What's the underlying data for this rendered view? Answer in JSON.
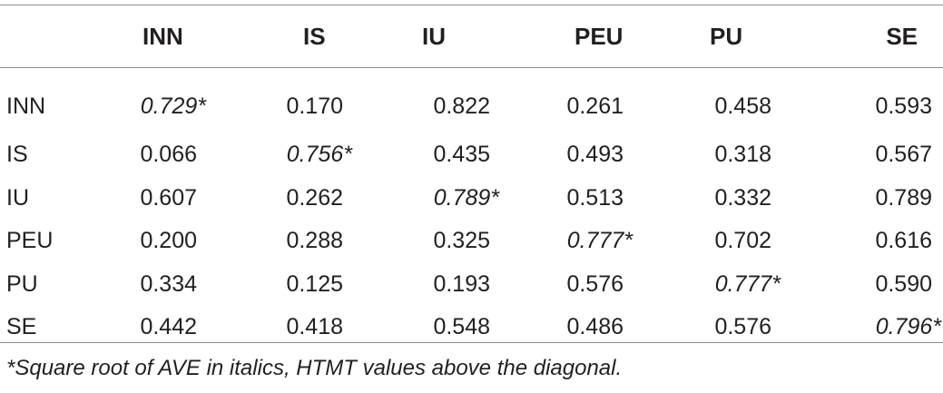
{
  "table": {
    "columns": [
      "",
      "INN",
      "IS",
      "IU",
      "PEU",
      "PU",
      "SE"
    ],
    "rows": [
      {
        "label": "INN",
        "cells": [
          "0.729*",
          "0.170",
          "0.822",
          "0.261",
          "0.458",
          "0.593"
        ]
      },
      {
        "label": "IS",
        "cells": [
          "0.066",
          "0.756*",
          "0.435",
          "0.493",
          "0.318",
          "0.567"
        ]
      },
      {
        "label": "IU",
        "cells": [
          "0.607",
          "0.262",
          "0.789*",
          "0.513",
          "0.332",
          "0.789"
        ]
      },
      {
        "label": "PEU",
        "cells": [
          "0.200",
          "0.288",
          "0.325",
          "0.777*",
          "0.702",
          "0.616"
        ]
      },
      {
        "label": "PU",
        "cells": [
          "0.334",
          "0.125",
          "0.193",
          "0.576",
          "0.777*",
          "0.590"
        ]
      },
      {
        "label": "SE",
        "cells": [
          "0.442",
          "0.418",
          "0.548",
          "0.486",
          "0.576",
          "0.796*"
        ]
      }
    ]
  },
  "footnote": "*Square root of AVE in italics, HTMT values above the diagonal."
}
